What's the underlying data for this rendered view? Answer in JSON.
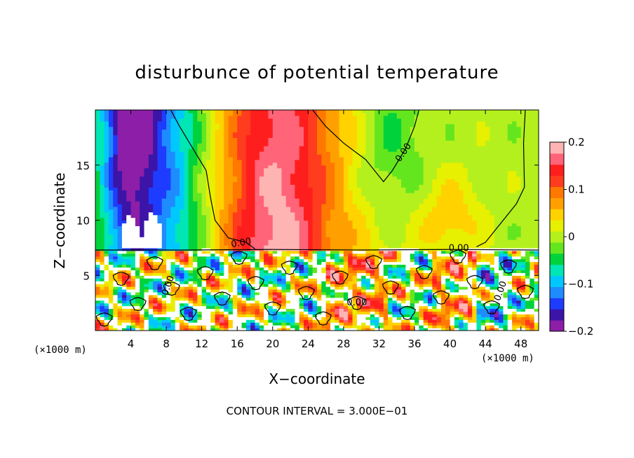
{
  "chart_data": {
    "type": "heatmap",
    "title": "disturbunce of potential temperature",
    "xlabel": "X−coordinate",
    "ylabel": "Z−coordinate",
    "x_unit": "(×1000 m)",
    "z_unit": "(×1000 m)",
    "xlim": [
      0,
      50
    ],
    "ylim": [
      0,
      20
    ],
    "x_ticks": [
      "4",
      "8",
      "12",
      "16",
      "20",
      "24",
      "28",
      "32",
      "36",
      "40",
      "44",
      "48"
    ],
    "y_ticks": [
      "5",
      "10",
      "15"
    ],
    "colorbar": {
      "range": [
        -0.2,
        0.2
      ],
      "tick_labels": [
        "0.2",
        "0.1",
        "0",
        "−0.1",
        "−0.2"
      ],
      "tick_values": [
        0.2,
        0.1,
        0,
        -0.1,
        -0.2
      ]
    },
    "contour_labels": [
      "0.00",
      "0.00",
      "0.00",
      "0.00",
      "0.00",
      "0.00"
    ],
    "contour_interval_text": "CONTOUR INTERVAL = 3.000E−01",
    "colors": {
      "palette": [
        "#8c1ea8",
        "#3c14a8",
        "#1e3cff",
        "#1e8cff",
        "#00c8ff",
        "#00e6b4",
        "#00d23c",
        "#64e61e",
        "#b4f01e",
        "#e6f000",
        "#ffd200",
        "#ffa000",
        "#ff7800",
        "#ff3c1e",
        "#ff1e1e",
        "#ff6478",
        "#ffb4b4"
      ]
    }
  }
}
